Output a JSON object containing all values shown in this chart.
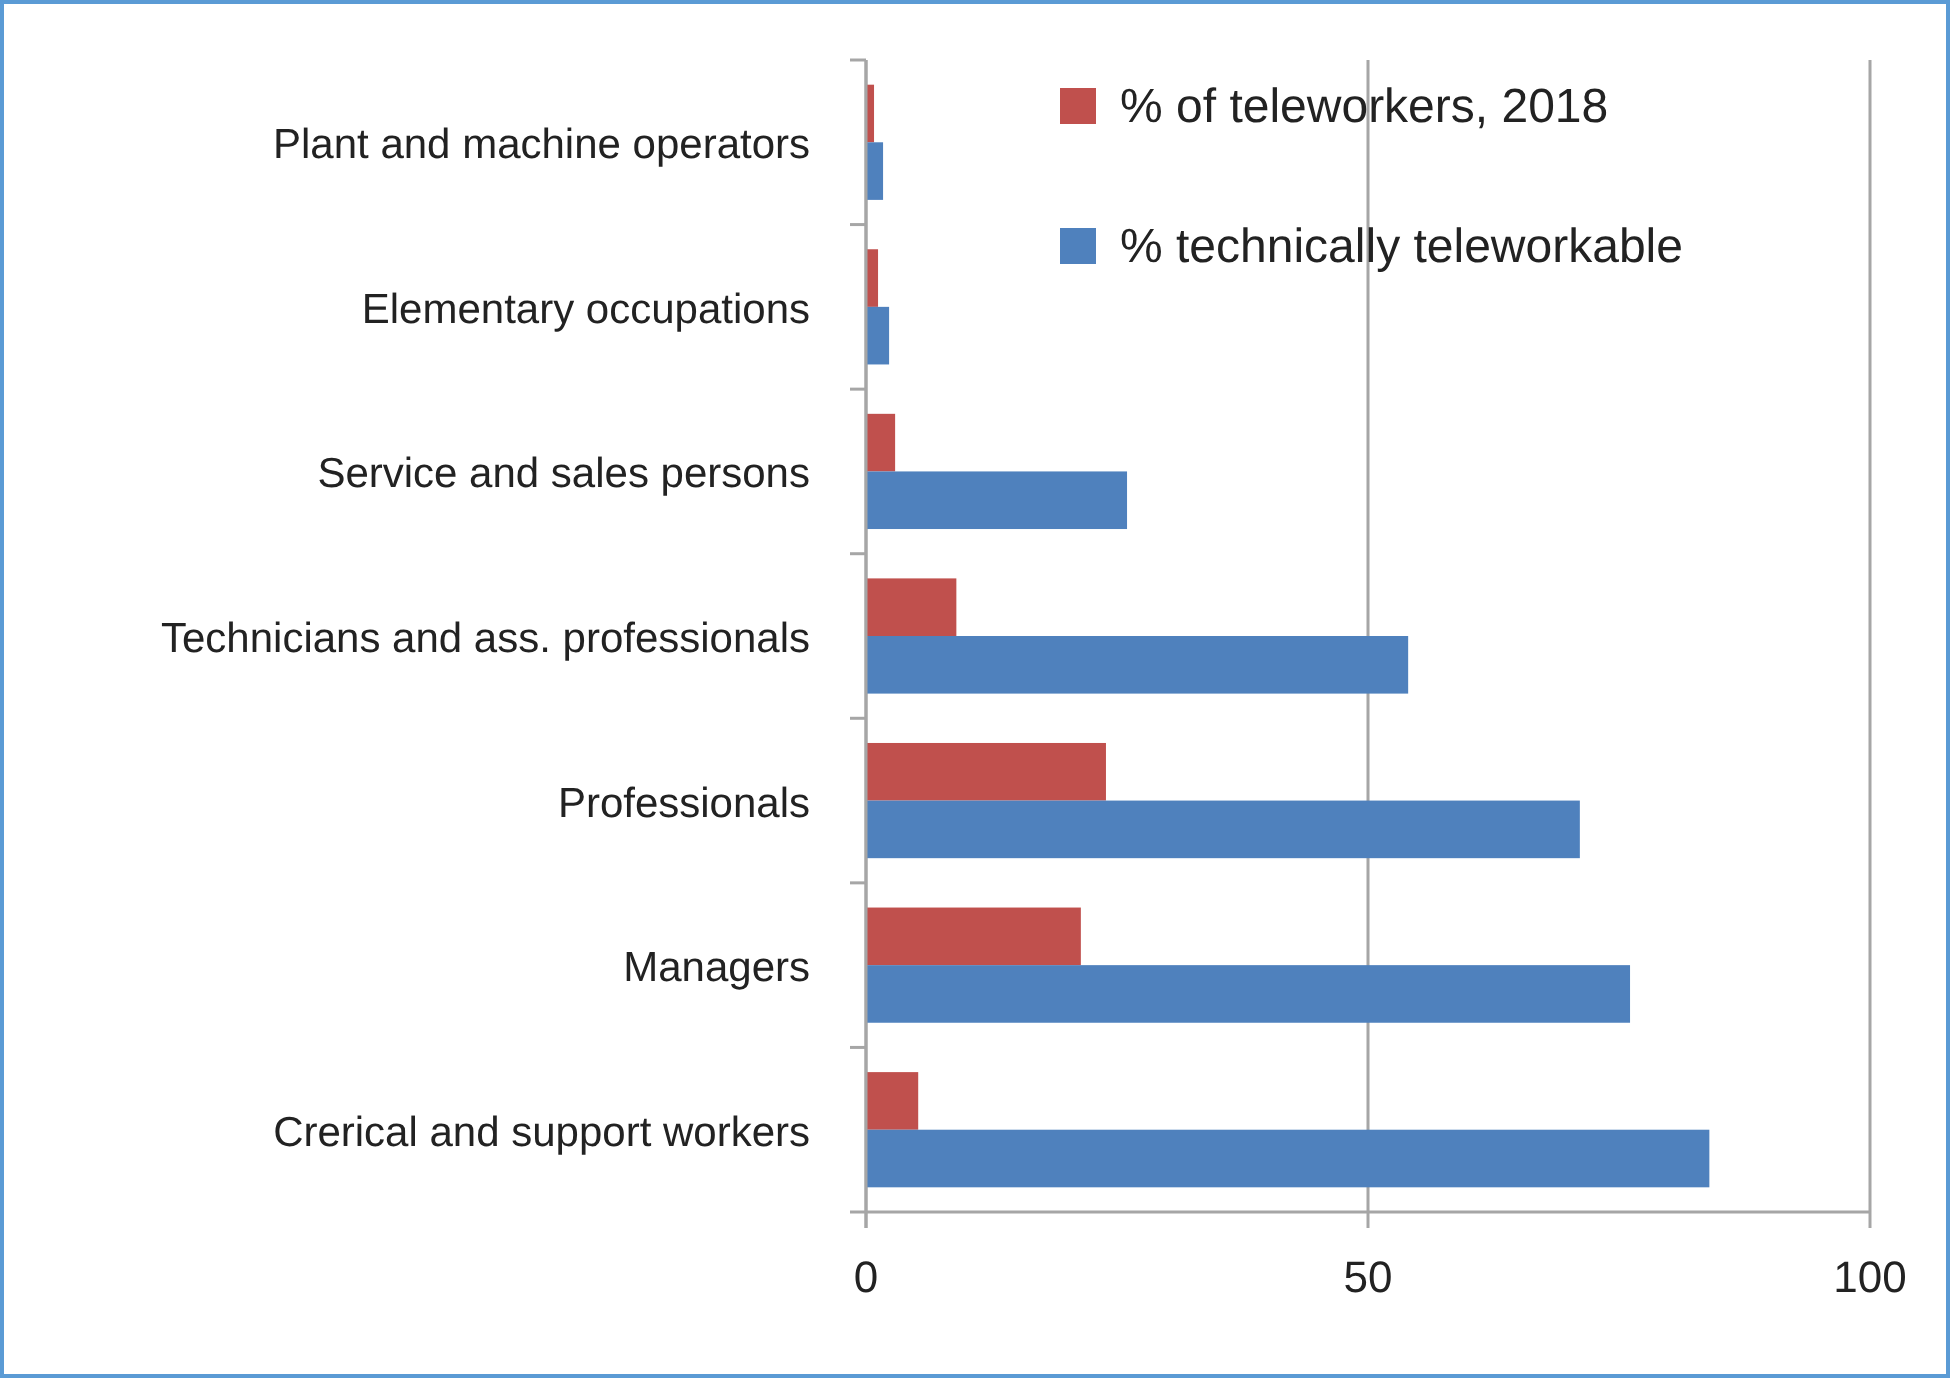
{
  "chart_data": {
    "type": "bar",
    "orientation": "horizontal",
    "categories": [
      "Plant and machine operators",
      "Elementary occupations",
      "Service and sales persons",
      "Technicians and ass. professionals",
      "Professionals",
      "Managers",
      "Crerical and support workers"
    ],
    "series": [
      {
        "name": "% of teleworkers, 2018",
        "color": "#c0504d",
        "values": [
          0.8,
          1.2,
          2.9,
          9.0,
          23.9,
          21.4,
          5.2
        ]
      },
      {
        "name": "% technically teleworkable",
        "color": "#4f81bd",
        "values": [
          1.7,
          2.3,
          26.0,
          54.0,
          71.1,
          76.1,
          84.0
        ]
      }
    ],
    "xlim": [
      0,
      100
    ],
    "xticks": [
      0,
      50,
      100
    ],
    "grid": "x",
    "legend": "top right"
  }
}
